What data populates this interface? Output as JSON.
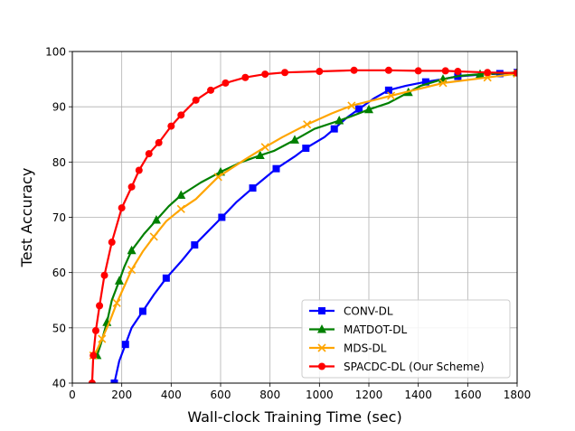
{
  "chart_data": {
    "type": "line",
    "title": "",
    "xlabel": "Wall-clock Training Time (sec)",
    "ylabel": "Test Accuracy",
    "xlim": [
      0,
      1800
    ],
    "ylim": [
      40,
      100
    ],
    "xticks": [
      0,
      200,
      400,
      600,
      800,
      1000,
      1200,
      1400,
      1600,
      1800
    ],
    "yticks": [
      40,
      50,
      60,
      70,
      80,
      90,
      100
    ],
    "grid": true,
    "legend_position": "lower-right",
    "series": [
      {
        "name": "CONV-DL",
        "color": "#0000ff",
        "marker": "square",
        "x": [
          170,
          190,
          215,
          240,
          285,
          330,
          380,
          440,
          495,
          550,
          605,
          665,
          730,
          790,
          825,
          900,
          945,
          1020,
          1060,
          1110,
          1160,
          1220,
          1280,
          1350,
          1430,
          1500,
          1560,
          1650,
          1730,
          1800
        ],
        "y": [
          40,
          44,
          47,
          50,
          53,
          56,
          59,
          62,
          65,
          67.5,
          70,
          72.8,
          75.3,
          77.5,
          78.8,
          81,
          82.5,
          84.5,
          86,
          88,
          89.6,
          91.5,
          93,
          93.8,
          94.5,
          95,
          95.5,
          95.8,
          96,
          96.2
        ]
      },
      {
        "name": "MATDOT-DL",
        "color": "#008000",
        "marker": "triangle",
        "x": [
          100,
          115,
          140,
          160,
          190,
          210,
          240,
          290,
          340,
          390,
          440,
          520,
          600,
          685,
          760,
          815,
          900,
          980,
          1080,
          1130,
          1200,
          1280,
          1360,
          1410,
          1500,
          1570,
          1650,
          1750,
          1800
        ],
        "y": [
          45,
          47,
          51,
          55,
          58.5,
          61,
          64,
          67,
          69.5,
          72,
          74,
          76.3,
          78.2,
          80,
          81.2,
          82,
          84,
          86,
          87.5,
          88.3,
          89.5,
          90.7,
          92.6,
          93.8,
          95,
          95.6,
          95.9,
          96.1,
          96.2
        ]
      },
      {
        "name": "MDS-DL",
        "color": "#ffa500",
        "marker": "x",
        "x": [
          85,
          100,
          120,
          150,
          180,
          210,
          240,
          285,
          330,
          380,
          440,
          500,
          590,
          700,
          780,
          850,
          950,
          1050,
          1130,
          1220,
          1290,
          1400,
          1500,
          1590,
          1680,
          1750,
          1800
        ],
        "y": [
          45,
          46,
          48,
          51,
          54.5,
          57.5,
          60.5,
          63.8,
          66.5,
          69.3,
          71.5,
          73.3,
          77.3,
          80.5,
          82.7,
          84.5,
          86.8,
          88.8,
          90.2,
          91.2,
          92,
          93.2,
          94.3,
          94.8,
          95.3,
          95.7,
          96
        ]
      },
      {
        "name": "SPACDC-DL (Our Scheme)",
        "color": "#ff0000",
        "marker": "circle",
        "x": [
          80,
          85,
          95,
          110,
          130,
          160,
          200,
          240,
          270,
          310,
          350,
          400,
          440,
          500,
          560,
          620,
          700,
          780,
          860,
          1000,
          1140,
          1280,
          1400,
          1510,
          1560,
          1680,
          1800
        ],
        "y": [
          40,
          45,
          49.5,
          54,
          59.5,
          65.5,
          71.7,
          75.5,
          78.5,
          81.5,
          83.5,
          86.5,
          88.5,
          91.2,
          93,
          94.3,
          95.3,
          95.9,
          96.2,
          96.4,
          96.6,
          96.6,
          96.5,
          96.5,
          96.4,
          96.2,
          96.1
        ]
      }
    ]
  }
}
